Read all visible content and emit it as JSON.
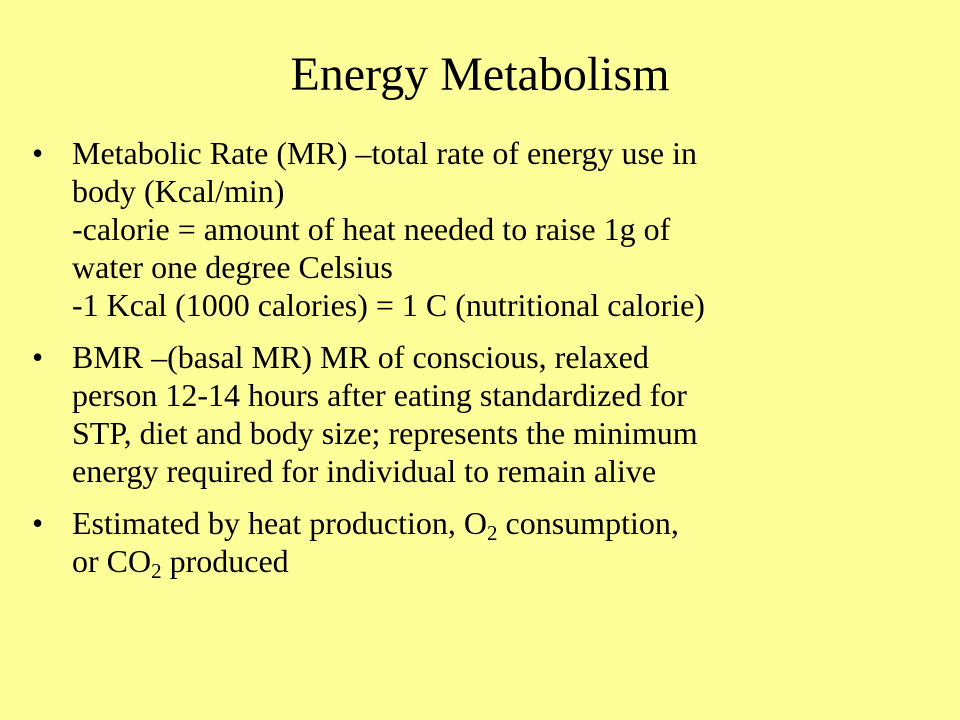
{
  "slide": {
    "title": "Energy Metabolism",
    "bullet_char": "•",
    "bullets": [
      {
        "lines": [
          "Metabolic Rate (MR) –total rate of energy use in",
          "body (Kcal/min)",
          "-calorie = amount of heat needed to raise 1g of",
          "water one degree Celsius",
          "-1 Kcal (1000 calories) = 1 C (nutritional calorie)"
        ]
      },
      {
        "lines": [
          "BMR –(basal MR) MR of conscious, relaxed",
          "person 12-14 hours after eating standardized for",
          "STP, diet and body size; represents the minimum",
          "energy required for individual to remain alive"
        ]
      },
      {
        "line1_pre": "Estimated by heat production, O",
        "line1_sub": "2",
        "line1_post": " consumption,",
        "line2_pre": "or CO",
        "line2_sub": "2",
        "line2_post": " produced"
      }
    ]
  }
}
